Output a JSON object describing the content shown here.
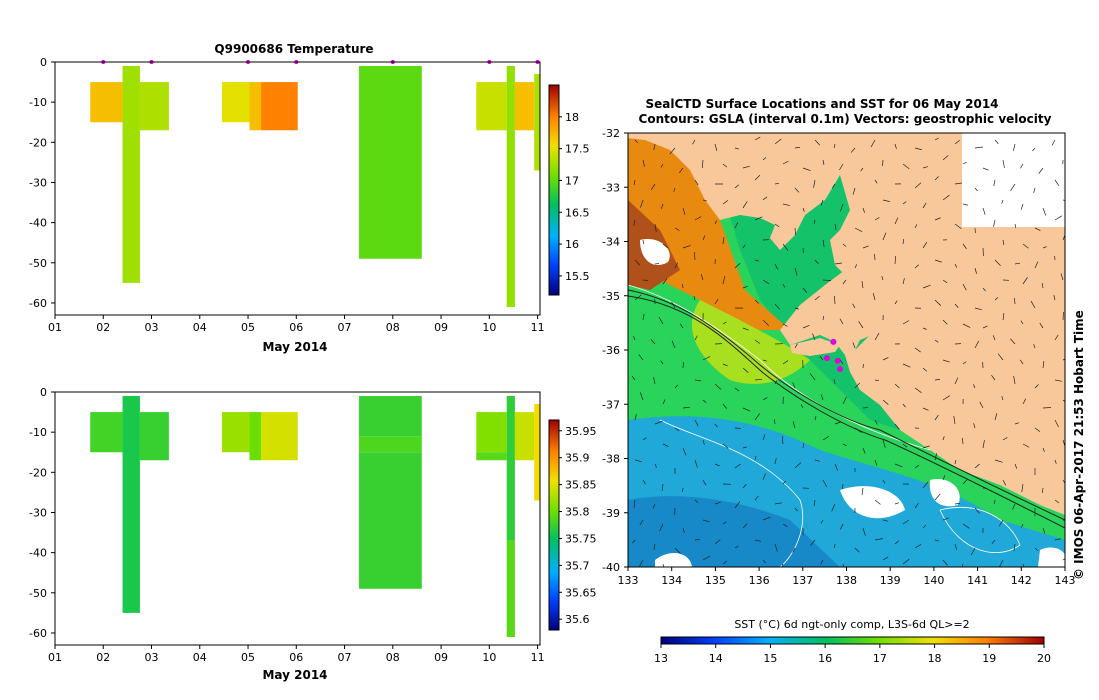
{
  "chart_data": [
    {
      "type": "bar",
      "title": "Q9900686  Temperature",
      "xlabel": "May 2014",
      "x_ticks": [
        "01",
        "02",
        "03",
        "04",
        "05",
        "06",
        "07",
        "08",
        "09",
        "10",
        "11"
      ],
      "xlim": [
        1,
        11.05
      ],
      "y_ticks": [
        "0",
        "-10",
        "-20",
        "-30",
        "-40",
        "-50",
        "-60"
      ],
      "ylim": [
        -63,
        0
      ],
      "profile_markers_day": [
        2.0,
        3.0,
        5.0,
        6.0,
        8.0,
        10.0,
        11.0
      ],
      "colorbar": {
        "min": 15.2,
        "max": 18.5,
        "ticks": [
          "15.5",
          "16",
          "16.5",
          "17",
          "17.5",
          "18"
        ]
      },
      "segments": [
        {
          "x0": 1.73,
          "x1": 2.4,
          "top": -5,
          "bottom": -15,
          "value": 17.7
        },
        {
          "x0": 2.4,
          "x1": 2.76,
          "top": -1,
          "bottom": -55,
          "value": 17.25
        },
        {
          "x0": 2.76,
          "x1": 3.36,
          "top": -5,
          "bottom": -17,
          "value": 17.3
        },
        {
          "x0": 4.46,
          "x1": 5.03,
          "top": -5,
          "bottom": -15,
          "value": 17.5
        },
        {
          "x0": 5.03,
          "x1": 5.27,
          "top": -5,
          "bottom": -17,
          "value": 17.7
        },
        {
          "x0": 5.27,
          "x1": 6.03,
          "top": -5,
          "bottom": -17,
          "value": 18.0
        },
        {
          "x0": 7.3,
          "x1": 8.6,
          "top": -1,
          "bottom": -49,
          "value": 17.0
        },
        {
          "x0": 9.73,
          "x1": 10.36,
          "top": -5,
          "bottom": -17,
          "value": 17.4
        },
        {
          "x0": 10.36,
          "x1": 10.53,
          "top": -1,
          "bottom": -61,
          "value": 17.2
        },
        {
          "x0": 10.53,
          "x1": 10.93,
          "top": -5,
          "bottom": -17,
          "value": 17.7
        },
        {
          "x0": 10.93,
          "x1": 11.05,
          "top": -3,
          "bottom": -27,
          "value": 17.3
        }
      ]
    },
    {
      "type": "bar",
      "title": "",
      "xlabel": "May 2014",
      "x_ticks": [
        "01",
        "02",
        "03",
        "04",
        "05",
        "06",
        "07",
        "08",
        "09",
        "10",
        "11"
      ],
      "xlim": [
        1,
        11.05
      ],
      "y_ticks": [
        "0",
        "-10",
        "-20",
        "-30",
        "-40",
        "-50",
        "-60"
      ],
      "ylim": [
        -63,
        0
      ],
      "colorbar": {
        "min": 35.58,
        "max": 35.97,
        "ticks": [
          "35.6",
          "35.65",
          "35.7",
          "35.75",
          "35.8",
          "35.85",
          "35.9",
          "35.95"
        ]
      },
      "segments": [
        {
          "x0": 1.73,
          "x1": 2.4,
          "top": -5,
          "bottom": -15,
          "value": 35.78
        },
        {
          "x0": 2.4,
          "x1": 2.76,
          "top": -1,
          "bottom": -55,
          "value": 35.76
        },
        {
          "x0": 2.76,
          "x1": 3.36,
          "top": -5,
          "bottom": -17,
          "value": 35.775
        },
        {
          "x0": 4.46,
          "x1": 5.03,
          "top": -5,
          "bottom": -15,
          "value": 35.82
        },
        {
          "x0": 5.03,
          "x1": 5.27,
          "top": -5,
          "bottom": -17,
          "value": 35.8
        },
        {
          "x0": 5.27,
          "x1": 6.03,
          "top": -5,
          "bottom": -17,
          "value": 35.845
        },
        {
          "x0": 7.3,
          "x1": 8.6,
          "top": -1,
          "bottom": -11,
          "value": 35.775
        },
        {
          "x0": 7.3,
          "x1": 8.6,
          "top": -11,
          "bottom": -15,
          "value": 35.785
        },
        {
          "x0": 7.3,
          "x1": 8.6,
          "top": -15,
          "bottom": -49,
          "value": 35.775
        },
        {
          "x0": 9.73,
          "x1": 10.36,
          "top": -5,
          "bottom": -15,
          "value": 35.81
        },
        {
          "x0": 9.73,
          "x1": 10.36,
          "top": -15,
          "bottom": -17,
          "value": 35.79
        },
        {
          "x0": 10.36,
          "x1": 10.53,
          "top": -1,
          "bottom": -37,
          "value": 35.77
        },
        {
          "x0": 10.36,
          "x1": 10.53,
          "top": -37,
          "bottom": -61,
          "value": 35.79
        },
        {
          "x0": 10.53,
          "x1": 10.93,
          "top": -5,
          "bottom": -17,
          "value": 35.84
        },
        {
          "x0": 10.93,
          "x1": 11.05,
          "top": -3,
          "bottom": -27,
          "value": 35.86
        }
      ]
    },
    {
      "type": "heatmap",
      "title": "SealCTD Surface Locations and SST for 06 May 2014",
      "subtitle": "Contours: GSLA (interval 0.1m) Vectors: geostrophic velocity",
      "x_ticks": [
        "133",
        "134",
        "135",
        "136",
        "137",
        "138",
        "139",
        "140",
        "141",
        "142",
        "143"
      ],
      "xlim": [
        133,
        143
      ],
      "y_ticks": [
        "-32",
        "-33",
        "-34",
        "-35",
        "-36",
        "-37",
        "-38",
        "-39",
        "-40"
      ],
      "ylim": [
        -40,
        -32
      ],
      "colorbar_label": "SST (°C) 6d ngt-only comp, L3S-6d QL>=2",
      "colorbar": {
        "min": 13,
        "max": 20,
        "ticks": [
          "13",
          "14",
          "15",
          "16",
          "17",
          "18",
          "19",
          "20"
        ]
      },
      "land_color": "#f9c89a",
      "station_points": [
        {
          "lon": 137.55,
          "lat": -36.15
        },
        {
          "lon": 137.7,
          "lat": -35.85
        },
        {
          "lon": 137.8,
          "lat": -36.2
        },
        {
          "lon": 137.85,
          "lat": -36.35
        }
      ],
      "side_label": "© IMOS 06-Apr-2017 21:53 Hobart Time"
    }
  ],
  "colors": {
    "marker": "#e000e0",
    "axis": "#000000"
  }
}
